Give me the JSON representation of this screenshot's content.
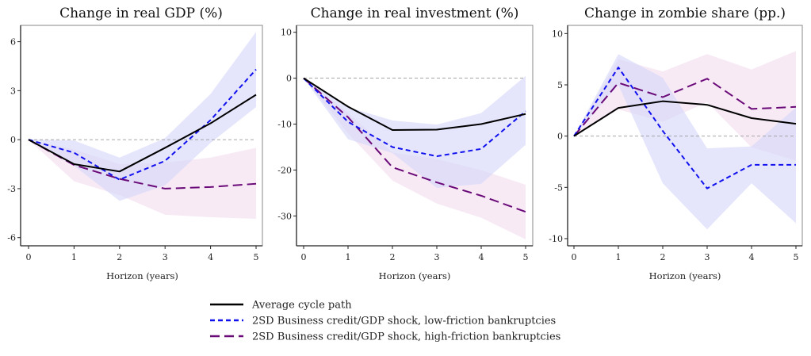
{
  "legend": [
    {
      "key": "avg",
      "label": "Average cycle path",
      "color": "#000000",
      "style": "solid"
    },
    {
      "key": "low",
      "label": "2SD Business credit/GDP shock, low-friction bankruptcies",
      "color": "#1010ee",
      "style": "short-dash"
    },
    {
      "key": "high",
      "label": "2SD Business credit/GDP shock, high-friction bankruptcies",
      "color": "#6a0a78",
      "style": "long-dash"
    }
  ],
  "band_colors": {
    "low": "#d4d6fa",
    "high": "#f2dcef"
  },
  "chart_data": [
    {
      "type": "line",
      "title": "Change in real GDP (%)",
      "xlabel": "Horizon (years)",
      "ylabel": "",
      "x": [
        0,
        1,
        2,
        3,
        4,
        5
      ],
      "xticks": [
        0,
        1,
        2,
        3,
        4,
        5
      ],
      "yticks": [
        6,
        3,
        0,
        -3,
        -6
      ],
      "ylim": [
        -6.5,
        7.0
      ],
      "zero_line": true,
      "series": [
        {
          "name": "Average cycle path",
          "key": "avg",
          "values": [
            0,
            -1.5,
            -1.95,
            -0.5,
            1.0,
            2.75
          ]
        },
        {
          "name": "2SD Business credit/GDP shock, low-friction bankruptcies",
          "key": "low",
          "values": [
            0,
            -0.8,
            -2.45,
            -1.3,
            1.2,
            4.3
          ],
          "band_upper": [
            0,
            -0.05,
            -1.1,
            0.1,
            2.8,
            6.6
          ],
          "band_lower": [
            0,
            -1.6,
            -3.75,
            -2.8,
            -0.2,
            2.0
          ]
        },
        {
          "name": "2SD Business credit/GDP shock, high-friction bankruptcies",
          "key": "high",
          "values": [
            0,
            -1.55,
            -2.4,
            -3.0,
            -2.9,
            -2.7
          ],
          "band_upper": [
            0,
            -0.6,
            -1.5,
            -1.4,
            -1.1,
            -0.5
          ],
          "band_lower": [
            0,
            -2.55,
            -3.4,
            -4.6,
            -4.75,
            -4.85
          ]
        }
      ]
    },
    {
      "type": "line",
      "title": "Change in real investment (%)",
      "xlabel": "Horizon (years)",
      "ylabel": "",
      "x": [
        0,
        1,
        2,
        3,
        4,
        5
      ],
      "xticks": [
        0,
        1,
        2,
        3,
        4,
        5
      ],
      "yticks": [
        10,
        0,
        -10,
        -20,
        -30
      ],
      "ylim": [
        -36.5,
        11.5
      ],
      "zero_line": true,
      "series": [
        {
          "name": "Average cycle path",
          "key": "avg",
          "values": [
            0,
            -6.2,
            -11.3,
            -11.2,
            -10.0,
            -7.8
          ]
        },
        {
          "name": "2SD Business credit/GDP shock, low-friction bankruptcies",
          "key": "low",
          "values": [
            0,
            -9.5,
            -15.0,
            -17.0,
            -15.4,
            -7.2
          ],
          "band_upper": [
            0,
            -6.3,
            -9.2,
            -10.1,
            -7.6,
            0.5
          ],
          "band_lower": [
            0,
            -13.3,
            -16.3,
            -23.9,
            -23.0,
            -14.5
          ]
        },
        {
          "name": "2SD Business credit/GDP shock, high-friction bankruptcies",
          "key": "high",
          "values": [
            0,
            -8.5,
            -19.4,
            -22.7,
            -25.6,
            -29.1
          ],
          "band_upper": [
            0,
            -7.5,
            -16.2,
            -17.6,
            -20.0,
            -23.2
          ],
          "band_lower": [
            0,
            -12.0,
            -22.3,
            -27.3,
            -30.4,
            -35.1
          ]
        }
      ]
    },
    {
      "type": "line",
      "title": "Change in zombie share (pp.)",
      "xlabel": "Horizon (years)",
      "ylabel": "",
      "x": [
        0,
        1,
        2,
        3,
        4,
        5
      ],
      "xticks": [
        0,
        1,
        2,
        3,
        4,
        5
      ],
      "yticks": [
        10,
        5,
        0,
        -5,
        -10
      ],
      "ylim": [
        -10.7,
        10.8
      ],
      "zero_line": true,
      "series": [
        {
          "name": "Average cycle path",
          "key": "avg",
          "values": [
            0,
            2.75,
            3.4,
            3.05,
            1.75,
            1.2
          ]
        },
        {
          "name": "2SD Business credit/GDP shock, low-friction bankruptcies",
          "key": "low",
          "values": [
            0,
            6.7,
            0.5,
            -5.1,
            -2.8,
            -2.8
          ],
          "band_upper": [
            0,
            8.0,
            5.7,
            -1.2,
            -1.0,
            2.8
          ],
          "band_lower": [
            0,
            5.0,
            -4.6,
            -9.1,
            -4.6,
            -8.5
          ]
        },
        {
          "name": "2SD Business credit/GDP shock, high-friction bankruptcies",
          "key": "high",
          "values": [
            0,
            5.2,
            3.8,
            5.6,
            2.65,
            2.85
          ],
          "band_upper": [
            0,
            7.5,
            6.3,
            8.0,
            6.5,
            8.3
          ],
          "band_lower": [
            0,
            2.6,
            1.4,
            3.3,
            -1.1,
            -2.4
          ]
        }
      ]
    }
  ]
}
